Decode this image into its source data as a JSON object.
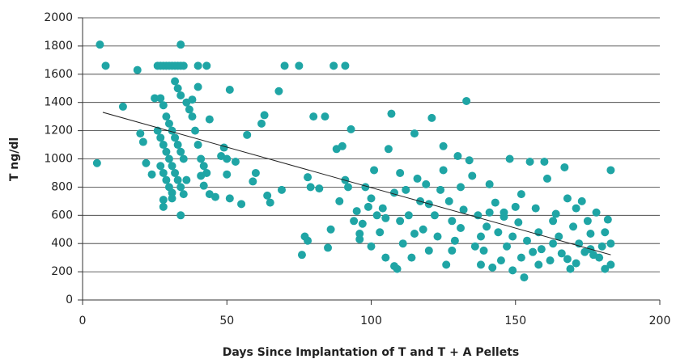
{
  "chart_data": {
    "type": "scatter",
    "xlabel": "Days Since Implantation of T and T + A Pellets",
    "ylabel": "T ng/dl",
    "xlim": [
      0,
      200
    ],
    "xticks": [
      0,
      50,
      100,
      150,
      200
    ],
    "ylim": [
      0,
      2000
    ],
    "yticks": [
      0,
      200,
      400,
      600,
      800,
      1000,
      1200,
      1400,
      1600,
      1800,
      2000
    ],
    "grid": true,
    "color": "#1fa5a5",
    "x": [
      5,
      6,
      8,
      14,
      19,
      20,
      21,
      22,
      24,
      25,
      26,
      27,
      28,
      29,
      30,
      31,
      32,
      33,
      34,
      35,
      34,
      27,
      28,
      29,
      30,
      31,
      32,
      33,
      34,
      35,
      26,
      27,
      28,
      29,
      30,
      31,
      32,
      33,
      34,
      35,
      27,
      28,
      29,
      30,
      31,
      28,
      28,
      31,
      34,
      36,
      37,
      38,
      39,
      40,
      41,
      42,
      43,
      44,
      40,
      43,
      32,
      33,
      34,
      36,
      38,
      40,
      41,
      42,
      44,
      46,
      48,
      49,
      50,
      51,
      50,
      51,
      53,
      55,
      57,
      59,
      60,
      62,
      63,
      64,
      65,
      68,
      69,
      70,
      75,
      76,
      77,
      78,
      78,
      79,
      80,
      82,
      84,
      85,
      86,
      87,
      88,
      89,
      90,
      91,
      91,
      92,
      93,
      94,
      95,
      96,
      97,
      98,
      99,
      100,
      101,
      102,
      103,
      104,
      105,
      106,
      107,
      108,
      108,
      109,
      110,
      111,
      112,
      113,
      114,
      115,
      116,
      117,
      118,
      119,
      120,
      121,
      122,
      123,
      124,
      125,
      125,
      126,
      127,
      128,
      129,
      130,
      131,
      132,
      133,
      134,
      135,
      136,
      137,
      138,
      139,
      140,
      141,
      142,
      143,
      144,
      145,
      146,
      147,
      148,
      149,
      150,
      151,
      152,
      153,
      154,
      155,
      156,
      157,
      158,
      159,
      160,
      161,
      162,
      163,
      164,
      165,
      166,
      167,
      168,
      169,
      170,
      171,
      172,
      173,
      174,
      175,
      176,
      177,
      178,
      179,
      180,
      181,
      182,
      183,
      183,
      96,
      100,
      105,
      110,
      115,
      120,
      128,
      138,
      146,
      152,
      158,
      163,
      168,
      176,
      181,
      183,
      131,
      141,
      149,
      171
    ],
    "values": [
      970,
      1810,
      1660,
      1370,
      1630,
      1180,
      1120,
      970,
      890,
      1430,
      1660,
      1660,
      1660,
      1660,
      1660,
      1660,
      1660,
      1660,
      1660,
      1660,
      1810,
      1430,
      1380,
      1300,
      1250,
      1200,
      1150,
      1100,
      1050,
      1000,
      1200,
      1150,
      1100,
      1050,
      1000,
      950,
      900,
      850,
      800,
      750,
      950,
      900,
      850,
      800,
      760,
      710,
      660,
      720,
      600,
      850,
      1350,
      1300,
      1200,
      1100,
      1000,
      950,
      900,
      1280,
      1660,
      1660,
      1550,
      1500,
      1450,
      1400,
      1420,
      1510,
      880,
      810,
      750,
      730,
      1020,
      1080,
      1000,
      1490,
      890,
      720,
      980,
      680,
      1170,
      840,
      900,
      1250,
      1310,
      740,
      690,
      1480,
      780,
      1660,
      1660,
      320,
      450,
      420,
      870,
      800,
      1300,
      790,
      1300,
      370,
      500,
      1660,
      1070,
      700,
      1090,
      1660,
      850,
      800,
      1210,
      560,
      630,
      430,
      540,
      800,
      660,
      720,
      920,
      600,
      480,
      650,
      580,
      1070,
      1320,
      760,
      240,
      220,
      900,
      400,
      780,
      600,
      300,
      1180,
      860,
      700,
      500,
      820,
      350,
      1290,
      600,
      450,
      780,
      1090,
      920,
      250,
      700,
      560,
      420,
      1020,
      800,
      640,
      1410,
      990,
      880,
      380,
      600,
      450,
      350,
      520,
      820,
      230,
      690,
      480,
      280,
      590,
      380,
      1000,
      450,
      660,
      550,
      300,
      160,
      420,
      980,
      340,
      650,
      480,
      360,
      980,
      860,
      280,
      560,
      610,
      450,
      330,
      940,
      720,
      220,
      520,
      650,
      400,
      700,
      340,
      560,
      470,
      320,
      620,
      300,
      380,
      220,
      570,
      920,
      250,
      470,
      380,
      300,
      560,
      470,
      680,
      350,
      250,
      620,
      750,
      250,
      400,
      290,
      360,
      480,
      400,
      510,
      620,
      210,
      260
    ],
    "trendline": {
      "x": [
        7,
        183
      ],
      "values": [
        1330,
        320
      ]
    }
  }
}
